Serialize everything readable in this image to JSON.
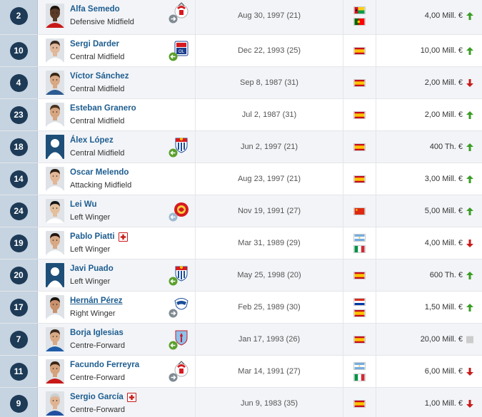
{
  "squad": {
    "rows": [
      {
        "number": "2",
        "name": "Alfa Semedo",
        "position": "Defensive Midfield",
        "dob": "Aug 30, 1997 (21)",
        "flags": [
          "guinea-bissau",
          "portugal"
        ],
        "club": "benfica",
        "transfer": "loan",
        "value": "4,00 Mill. €",
        "trend": "up",
        "injured": false,
        "underlined": false,
        "photo": {
          "skin": "#5b3a26",
          "hair": "#1b130c",
          "shirt": "#c81818"
        }
      },
      {
        "number": "10",
        "name": "Sergi Darder",
        "position": "Central Midfield",
        "dob": "Dec 22, 1993 (25)",
        "flags": [
          "spain"
        ],
        "club": "lyon",
        "transfer": "back",
        "value": "10,00 Mill. €",
        "trend": "up",
        "injured": false,
        "underlined": false,
        "photo": {
          "skin": "#e2b89a",
          "hair": "#3a2a1f",
          "shirt": "#ffffff"
        }
      },
      {
        "number": "4",
        "name": "Víctor Sánchez",
        "position": "Central Midfield",
        "dob": "Sep 8, 1987 (31)",
        "flags": [
          "spain"
        ],
        "club": "",
        "transfer": "",
        "value": "2,00 Mill. €",
        "trend": "down",
        "injured": false,
        "underlined": false,
        "photo": {
          "skin": "#d9a884",
          "hair": "#3a2616",
          "shirt": "#2c5b93"
        }
      },
      {
        "number": "23",
        "name": "Esteban Granero",
        "position": "Central Midfield",
        "dob": "Jul 2, 1987 (31)",
        "flags": [
          "spain"
        ],
        "club": "",
        "transfer": "",
        "value": "2,00 Mill. €",
        "trend": "up",
        "injured": false,
        "underlined": false,
        "photo": {
          "skin": "#d7a57f",
          "hair": "#4a3322",
          "shirt": "#ffffff"
        }
      },
      {
        "number": "18",
        "name": "Álex López",
        "position": "Central Midfield",
        "dob": "Jun 2, 1997 (21)",
        "flags": [
          "spain"
        ],
        "club": "espanyol",
        "transfer": "back",
        "value": "400 Th. €",
        "trend": "up",
        "injured": false,
        "underlined": false,
        "photo": {
          "skin": "silhouette",
          "hair": "",
          "shirt": ""
        }
      },
      {
        "number": "14",
        "name": "Oscar Melendo",
        "position": "Attacking Midfield",
        "dob": "Aug 23, 1997 (21)",
        "flags": [
          "spain"
        ],
        "club": "",
        "transfer": "",
        "value": "3,00 Mill. €",
        "trend": "up",
        "injured": false,
        "underlined": false,
        "photo": {
          "skin": "#e3b796",
          "hair": "#2b1d13",
          "shirt": "#ffffff"
        }
      },
      {
        "number": "24",
        "name": "Lei Wu",
        "position": "Left Winger",
        "dob": "Nov 19, 1991 (27)",
        "flags": [
          "china"
        ],
        "club": "shanghai",
        "transfer": "loan-in",
        "value": "5,00 Mill. €",
        "trend": "up",
        "injured": false,
        "underlined": false,
        "photo": {
          "skin": "#e4bf9c",
          "hair": "#141414",
          "shirt": "#ffffff"
        }
      },
      {
        "number": "19",
        "name": "Pablo Piatti",
        "position": "Left Winger",
        "dob": "Mar 31, 1989 (29)",
        "flags": [
          "argentina",
          "italy"
        ],
        "club": "",
        "transfer": "",
        "value": "4,00 Mill. €",
        "trend": "down",
        "injured": true,
        "underlined": false,
        "photo": {
          "skin": "#d8a883",
          "hair": "#231711",
          "shirt": "#ffffff"
        }
      },
      {
        "number": "20",
        "name": "Javi Puado",
        "position": "Left Winger",
        "dob": "May 25, 1998 (20)",
        "flags": [
          "spain"
        ],
        "club": "espanyol",
        "transfer": "back",
        "value": "600 Th. €",
        "trend": "up",
        "injured": false,
        "underlined": false,
        "photo": {
          "skin": "silhouette",
          "hair": "",
          "shirt": ""
        }
      },
      {
        "number": "17",
        "name": "Hernán Pérez",
        "position": "Right Winger",
        "dob": "Feb 25, 1989 (30)",
        "flags": [
          "paraguay",
          "spain"
        ],
        "club": "alaves",
        "transfer": "loan",
        "value": "1,50 Mill. €",
        "trend": "up",
        "injured": false,
        "underlined": true,
        "photo": {
          "skin": "#c9916b",
          "hair": "#1a120c",
          "shirt": "#ffffff"
        }
      },
      {
        "number": "7",
        "name": "Borja Iglesias",
        "position": "Centre-Forward",
        "dob": "Jan 17, 1993 (26)",
        "flags": [
          "spain"
        ],
        "club": "celta",
        "transfer": "back",
        "value": "20,00 Mill. €",
        "trend": "same",
        "injured": false,
        "underlined": false,
        "photo": {
          "skin": "#d9a985",
          "hair": "#3a2a1f",
          "shirt": "#1e5ca8"
        }
      },
      {
        "number": "11",
        "name": "Facundo Ferreyra",
        "position": "Centre-Forward",
        "dob": "Mar 14, 1991 (27)",
        "flags": [
          "argentina",
          "italy"
        ],
        "club": "benfica",
        "transfer": "loan",
        "value": "6,00 Mill. €",
        "trend": "down",
        "injured": false,
        "underlined": false,
        "photo": {
          "skin": "#d6a27c",
          "hair": "#3a2414",
          "shirt": "#c81818"
        }
      },
      {
        "number": "9",
        "name": "Sergio García",
        "position": "Centre-Forward",
        "dob": "Jun 9, 1983 (35)",
        "flags": [
          "spain"
        ],
        "club": "",
        "transfer": "",
        "value": "1,00 Mill. €",
        "trend": "down",
        "injured": true,
        "underlined": false,
        "photo": {
          "skin": "#e0b493",
          "hair": "#cfcfcf",
          "shirt": "#2050a0"
        }
      }
    ]
  },
  "colors": {
    "number_badge": "#1d3a56",
    "number_cell": "#c6d3e0",
    "name_link": "#1d5d90",
    "trend_up": "#3a9d23",
    "trend_down": "#c81b1b",
    "trend_same": "#cccccc",
    "transfer_green": "#5aa02c",
    "transfer_grey": "#7f8a93"
  }
}
